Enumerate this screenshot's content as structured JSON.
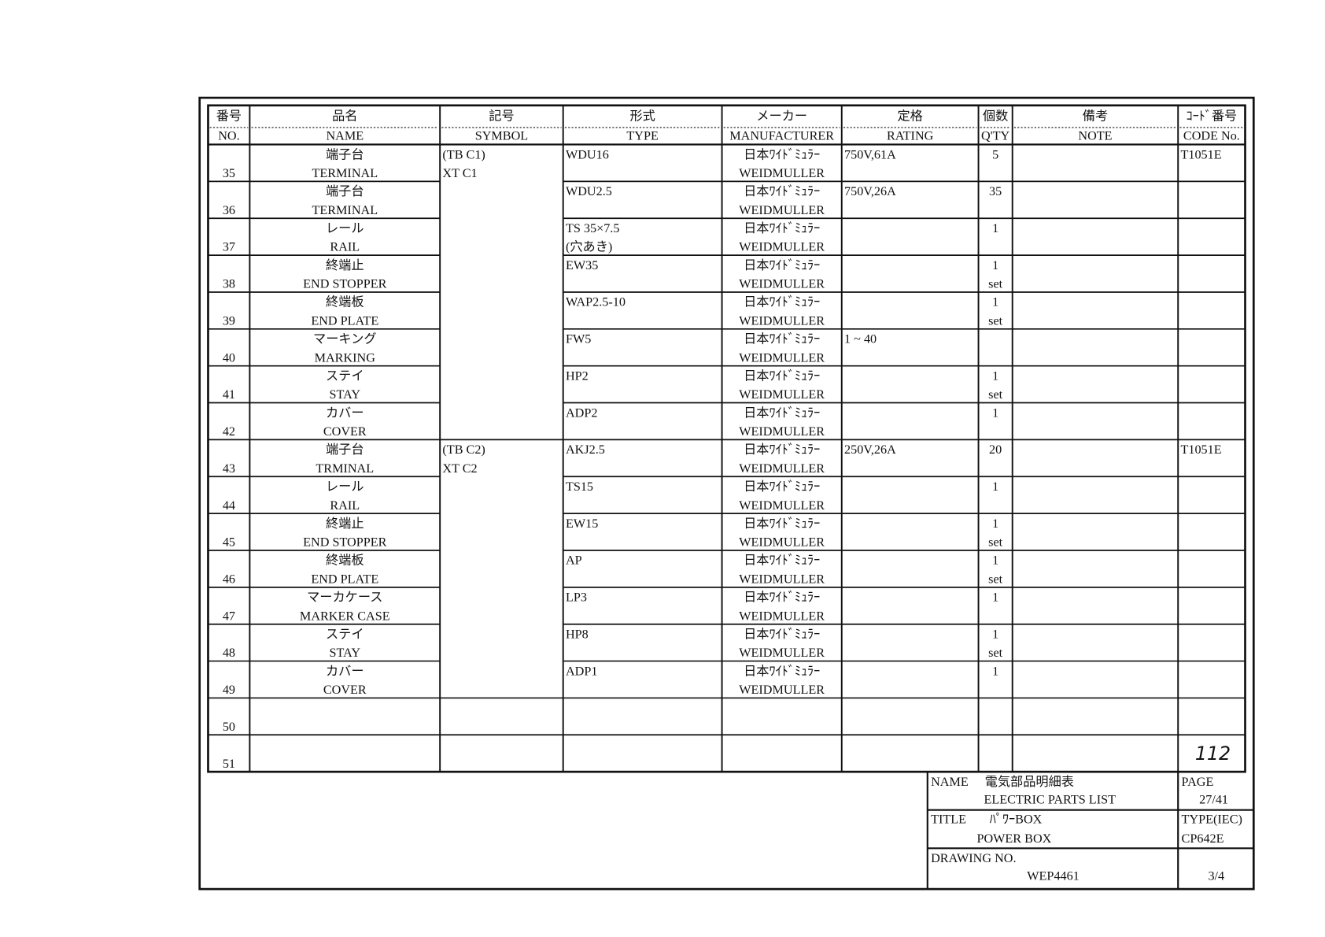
{
  "header": {
    "columns": [
      {
        "jp": "番号",
        "en": "NO."
      },
      {
        "jp": "品名",
        "en": "NAME"
      },
      {
        "jp": "記号",
        "en": "SYMBOL"
      },
      {
        "jp": "形式",
        "en": "TYPE"
      },
      {
        "jp": "メーカー",
        "en": "MANUFACTURER"
      },
      {
        "jp": "定格",
        "en": "RATING"
      },
      {
        "jp": "個数",
        "en": "Q'TY"
      },
      {
        "jp": "備考",
        "en": "NOTE"
      },
      {
        "jp": "ｺｰﾄﾞ番号",
        "en": "CODE No."
      }
    ]
  },
  "table": {
    "rows": [
      {
        "no": "35",
        "name": [
          "端子台",
          "TERMINAL"
        ],
        "symbol": [
          "(TB C1)",
          "XT C1"
        ],
        "type": [
          "WDU16"
        ],
        "manufacturer": [
          "日本ﾜｲﾄﾞﾐｭﾗｰ",
          "WEIDMULLER"
        ],
        "rating": "750V,61A",
        "qty": [
          "5"
        ],
        "code": "T1051E"
      },
      {
        "no": "36",
        "name": [
          "端子台",
          "TERMINAL"
        ],
        "type": [
          "WDU2.5"
        ],
        "manufacturer": [
          "日本ﾜｲﾄﾞﾐｭﾗｰ",
          "WEIDMULLER"
        ],
        "rating": "750V,26A",
        "qty": [
          "35"
        ]
      },
      {
        "no": "37",
        "name": [
          "レール",
          "RAIL"
        ],
        "type": [
          "TS 35×7.5",
          "(穴あき)"
        ],
        "manufacturer": [
          "日本ﾜｲﾄﾞﾐｭﾗｰ",
          "WEIDMULLER"
        ],
        "qty": [
          "1"
        ]
      },
      {
        "no": "38",
        "name": [
          "終端止",
          "END STOPPER"
        ],
        "type": [
          "EW35"
        ],
        "manufacturer": [
          "日本ﾜｲﾄﾞﾐｭﾗｰ",
          "WEIDMULLER"
        ],
        "qty": [
          "1",
          "set"
        ]
      },
      {
        "no": "39",
        "name": [
          "終端板",
          "END PLATE"
        ],
        "type": [
          "WAP2.5-10"
        ],
        "manufacturer": [
          "日本ﾜｲﾄﾞﾐｭﾗｰ",
          "WEIDMULLER"
        ],
        "qty": [
          "1",
          "set"
        ]
      },
      {
        "no": "40",
        "name": [
          "マーキング",
          "MARKING"
        ],
        "type": [
          "FW5"
        ],
        "manufacturer": [
          "日本ﾜｲﾄﾞﾐｭﾗｰ",
          "WEIDMULLER"
        ],
        "rating": "1 ~ 40"
      },
      {
        "no": "41",
        "name": [
          "ステイ",
          "STAY"
        ],
        "type": [
          "HP2"
        ],
        "manufacturer": [
          "日本ﾜｲﾄﾞﾐｭﾗｰ",
          "WEIDMULLER"
        ],
        "qty": [
          "1",
          "set"
        ]
      },
      {
        "no": "42",
        "name": [
          "カバー",
          "COVER"
        ],
        "type": [
          "ADP2"
        ],
        "manufacturer": [
          "日本ﾜｲﾄﾞﾐｭﾗｰ",
          "WEIDMULLER"
        ],
        "qty": [
          "1"
        ]
      },
      {
        "no": "43",
        "name": [
          "端子台",
          "TRMINAL"
        ],
        "symbol": [
          "(TB C2)",
          "XT C2"
        ],
        "type": [
          "AKJ2.5"
        ],
        "manufacturer": [
          "日本ﾜｲﾄﾞﾐｭﾗｰ",
          "WEIDMULLER"
        ],
        "rating": "250V,26A",
        "qty": [
          "20"
        ],
        "code": "T1051E"
      },
      {
        "no": "44",
        "name": [
          "レール",
          "RAIL"
        ],
        "type": [
          "TS15"
        ],
        "manufacturer": [
          "日本ﾜｲﾄﾞﾐｭﾗｰ",
          "WEIDMULLER"
        ],
        "qty": [
          "1"
        ]
      },
      {
        "no": "45",
        "name": [
          "終端止",
          "END STOPPER"
        ],
        "type": [
          "EW15"
        ],
        "manufacturer": [
          "日本ﾜｲﾄﾞﾐｭﾗｰ",
          "WEIDMULLER"
        ],
        "qty": [
          "1",
          "set"
        ]
      },
      {
        "no": "46",
        "name": [
          "終端板",
          "END PLATE"
        ],
        "type": [
          "AP"
        ],
        "manufacturer": [
          "日本ﾜｲﾄﾞﾐｭﾗｰ",
          "WEIDMULLER"
        ],
        "qty": [
          "1",
          "set"
        ]
      },
      {
        "no": "47",
        "name": [
          "マーカケース",
          "MARKER CASE"
        ],
        "type": [
          "LP3"
        ],
        "manufacturer": [
          "日本ﾜｲﾄﾞﾐｭﾗｰ",
          "WEIDMULLER"
        ],
        "qty": [
          "1"
        ]
      },
      {
        "no": "48",
        "name": [
          "ステイ",
          "STAY"
        ],
        "type": [
          "HP8"
        ],
        "manufacturer": [
          "日本ﾜｲﾄﾞﾐｭﾗｰ",
          "WEIDMULLER"
        ],
        "qty": [
          "1",
          "set"
        ]
      },
      {
        "no": "49",
        "name": [
          "カバー",
          "COVER"
        ],
        "type": [
          "ADP1"
        ],
        "manufacturer": [
          "日本ﾜｲﾄﾞﾐｭﾗｰ",
          "WEIDMULLER"
        ],
        "qty": [
          "1"
        ]
      },
      {
        "no": "50"
      },
      {
        "no": "51"
      }
    ]
  },
  "annotation": "112",
  "title_block": {
    "name_label": "NAME",
    "name_jp": "電気部品明細表",
    "name_en": "ELECTRIC PARTS LIST",
    "page_label": "PAGE",
    "page": "27/41",
    "title_label": "TITLE",
    "title_jp": "ﾊﾟﾜｰBOX",
    "title_en": "POWER BOX",
    "type_label": "TYPE(IEC)",
    "type": "CP642E",
    "drawing_label": "DRAWING NO.",
    "drawing_no": "WEP4461",
    "sheet": "3/4"
  }
}
